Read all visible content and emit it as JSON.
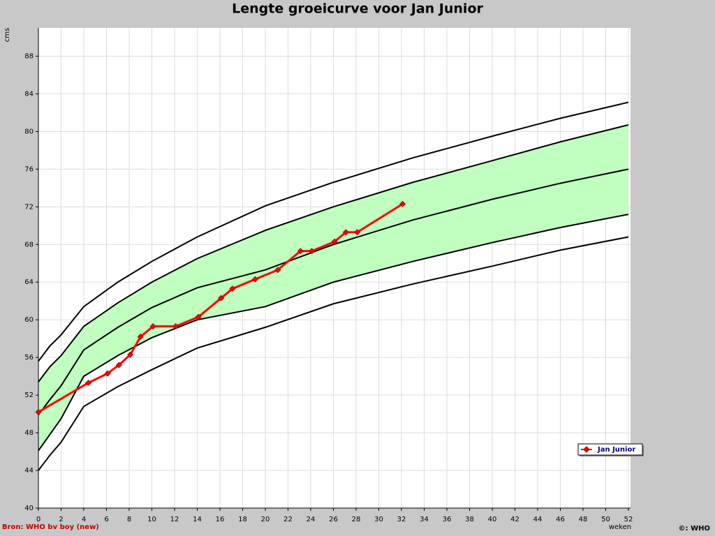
{
  "chart_data": {
    "type": "line",
    "title": "Lengte groeicurve voor Jan Junior",
    "y_label": "cms",
    "x_label": "weken",
    "source": "Bron: WHO bv boy (new)",
    "copyright": "©: WHO",
    "xlim": [
      0,
      52
    ],
    "xticks": [
      0,
      2,
      4,
      6,
      8,
      10,
      12,
      14,
      16,
      18,
      20,
      22,
      24,
      26,
      28,
      30,
      32,
      34,
      36,
      38,
      40,
      42,
      44,
      46,
      48,
      50,
      52
    ],
    "ylim": [
      40,
      91
    ],
    "yticks": [
      40,
      44,
      48,
      52,
      56,
      60,
      64,
      68,
      72,
      76,
      80,
      84,
      88
    ],
    "grid": true,
    "legend": "lower right",
    "reference_x": [
      0,
      1,
      2,
      4,
      7,
      10,
      14,
      20,
      26,
      33,
      40,
      46,
      52
    ],
    "reference_color": "#000000",
    "reference_curves": [
      {
        "values": [
          55.6,
          57.2,
          58.4,
          61.4,
          64.0,
          66.2,
          68.8,
          72.1,
          74.6,
          77.2,
          79.5,
          81.4,
          83.1
        ]
      },
      {
        "values": [
          53.4,
          55.0,
          56.2,
          59.3,
          61.8,
          64.0,
          66.5,
          69.5,
          72.0,
          74.6,
          76.9,
          78.9,
          80.7
        ]
      },
      {
        "values": [
          49.9,
          51.5,
          53.0,
          56.8,
          59.2,
          61.3,
          63.4,
          65.3,
          68.0,
          70.6,
          72.8,
          74.5,
          76.0
        ]
      },
      {
        "values": [
          46.1,
          47.8,
          49.5,
          54.0,
          56.2,
          58.1,
          60.0,
          61.4,
          64.0,
          66.2,
          68.2,
          69.8,
          71.2
        ]
      },
      {
        "values": [
          44.0,
          45.6,
          47.0,
          50.8,
          52.9,
          54.7,
          57.0,
          59.2,
          61.7,
          63.8,
          65.7,
          67.4,
          68.8
        ]
      }
    ],
    "band": {
      "color": "#c0ffc0",
      "between": [
        1,
        3
      ]
    },
    "series": [
      {
        "name": "Jan Junior",
        "color": "#ff0000",
        "x": [
          0,
          4.4,
          6.1,
          7.1,
          8.1,
          9.0,
          10.1,
          12.1,
          14.1,
          16.1,
          17.1,
          19.1,
          21.1,
          23.1,
          24.1,
          26.1,
          27.1,
          28.1,
          32.1
        ],
        "values": [
          50.2,
          53.3,
          54.3,
          55.2,
          56.3,
          58.2,
          59.3,
          59.3,
          60.3,
          62.3,
          63.3,
          64.3,
          65.3,
          67.3,
          67.3,
          68.3,
          69.3,
          69.3,
          72.3
        ]
      }
    ]
  }
}
